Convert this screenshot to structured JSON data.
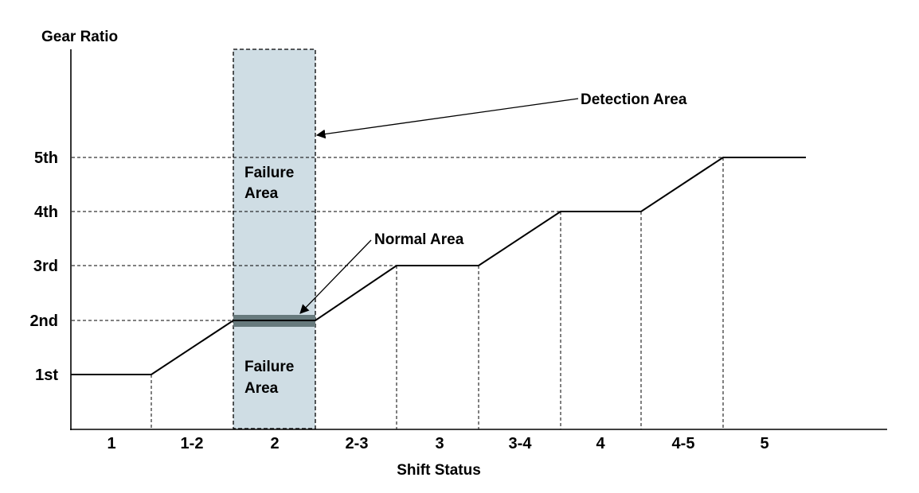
{
  "axes": {
    "y_title": "Gear Ratio",
    "x_title": "Shift Status"
  },
  "gear_levels": [
    {
      "id": "1st",
      "label": "1st"
    },
    {
      "id": "2nd",
      "label": "2nd"
    },
    {
      "id": "3rd",
      "label": "3rd"
    },
    {
      "id": "4th",
      "label": "4th"
    },
    {
      "id": "5th",
      "label": "5th"
    }
  ],
  "shift_statuses": [
    "1",
    "1-2",
    "2",
    "2-3",
    "3",
    "3-4",
    "4",
    "4-5",
    "5"
  ],
  "gear_profile": {
    "steps": [
      "1st",
      "1st",
      "2nd",
      "2nd",
      "3rd",
      "3rd",
      "4th",
      "4th",
      "5th",
      "5th"
    ]
  },
  "detection_area": {
    "status": "2",
    "label": "Detection Area",
    "upper_label_line1": "Failure",
    "upper_label_line2": "Area",
    "lower_label_line1": "Failure",
    "lower_label_line2": "Area"
  },
  "normal_area": {
    "label": "Normal Area",
    "gear": "2nd"
  },
  "colors": {
    "detection_fill": "#cfdde4",
    "normal_band": "#677a7d"
  }
}
